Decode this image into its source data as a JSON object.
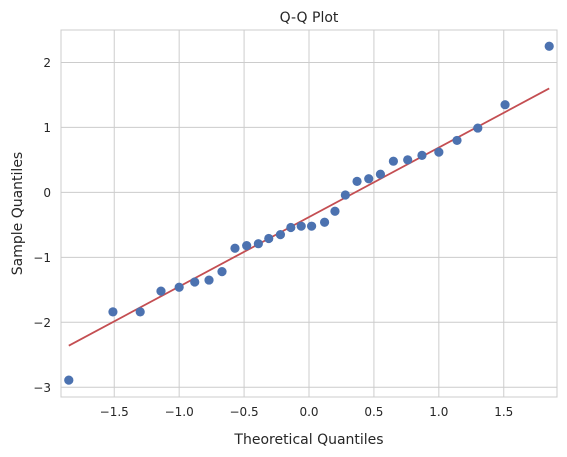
{
  "chart_data": {
    "type": "scatter",
    "title": "Q-Q Plot",
    "xlabel": "Theoretical Quantiles",
    "ylabel": "Sample Quantiles",
    "xlim": [
      -1.91,
      1.91
    ],
    "ylim": [
      -3.15,
      2.5
    ],
    "grid": true,
    "x_ticks": [
      -1.5,
      -1.0,
      -0.5,
      0.0,
      0.5,
      1.0,
      1.5
    ],
    "x_tick_labels": [
      "−1.5",
      "−1.0",
      "−0.5",
      "0.0",
      "0.5",
      "1.0",
      "1.5"
    ],
    "y_ticks": [
      2,
      1,
      0,
      -1,
      -2,
      -3
    ],
    "y_tick_labels": [
      "2",
      "1",
      "0",
      "−1",
      "−2",
      "−3"
    ],
    "series": [
      {
        "kind": "points",
        "color": "#4c72b0",
        "points": [
          [
            -1.85,
            -2.89
          ],
          [
            -1.51,
            -1.84
          ],
          [
            -1.3,
            -1.84
          ],
          [
            -1.14,
            -1.52
          ],
          [
            -1.0,
            -1.46
          ],
          [
            -0.88,
            -1.38
          ],
          [
            -0.77,
            -1.35
          ],
          [
            -0.67,
            -1.22
          ],
          [
            -0.57,
            -0.86
          ],
          [
            -0.48,
            -0.82
          ],
          [
            -0.39,
            -0.79
          ],
          [
            -0.31,
            -0.71
          ],
          [
            -0.22,
            -0.65
          ],
          [
            -0.14,
            -0.54
          ],
          [
            -0.06,
            -0.52
          ],
          [
            0.02,
            -0.52
          ],
          [
            0.12,
            -0.46
          ],
          [
            0.2,
            -0.29
          ],
          [
            0.28,
            -0.04
          ],
          [
            0.37,
            0.17
          ],
          [
            0.46,
            0.21
          ],
          [
            0.55,
            0.28
          ],
          [
            0.65,
            0.48
          ],
          [
            0.76,
            0.5
          ],
          [
            0.87,
            0.57
          ],
          [
            1.0,
            0.62
          ],
          [
            1.14,
            0.8
          ],
          [
            1.3,
            0.99
          ],
          [
            1.51,
            1.35
          ],
          [
            1.85,
            2.25
          ]
        ]
      },
      {
        "kind": "reference-line",
        "color": "#c44e52",
        "points": [
          [
            -1.85,
            -2.36
          ],
          [
            1.85,
            1.6
          ]
        ]
      }
    ]
  }
}
